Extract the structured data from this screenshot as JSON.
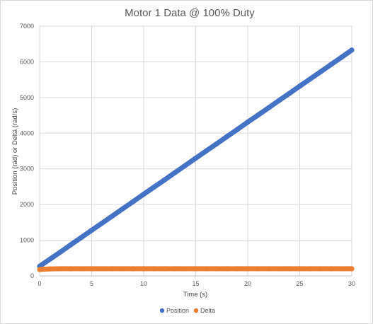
{
  "chart_data": {
    "type": "scatter",
    "title": "Motor 1 Data @ 100% Duty",
    "xlabel": "Time (s)",
    "ylabel": "Position (rad) or Delta (rad/s)",
    "xlim": [
      0,
      30
    ],
    "ylim": [
      0,
      7000
    ],
    "xticks": [
      "0",
      "5",
      "10",
      "15",
      "20",
      "25",
      "30"
    ],
    "yticks": [
      "0",
      "1000",
      "2000",
      "3000",
      "4000",
      "5000",
      "6000",
      "7000"
    ],
    "grid": true,
    "legend_position": "bottom",
    "series": [
      {
        "name": "Position",
        "color": "#4472c4",
        "x": [
          0,
          1,
          2,
          3,
          4,
          5,
          6,
          7,
          8,
          9,
          10,
          11,
          12,
          13,
          14,
          15,
          16,
          17,
          18,
          19,
          20,
          21,
          22,
          23,
          24,
          25,
          26,
          27,
          28,
          29,
          30
        ],
        "y": [
          270,
          470,
          670,
          875,
          1075,
          1280,
          1480,
          1680,
          1885,
          2085,
          2290,
          2490,
          2690,
          2895,
          3095,
          3300,
          3500,
          3700,
          3905,
          4105,
          4310,
          4510,
          4710,
          4915,
          5115,
          5320,
          5520,
          5720,
          5925,
          6125,
          6330
        ]
      },
      {
        "name": "Delta",
        "color": "#ed7d31",
        "x": [
          0,
          1,
          2,
          3,
          4,
          5,
          6,
          7,
          8,
          9,
          10,
          11,
          12,
          13,
          14,
          15,
          16,
          17,
          18,
          19,
          20,
          21,
          22,
          23,
          24,
          25,
          26,
          27,
          28,
          29,
          30
        ],
        "y": [
          180,
          195,
          200,
          200,
          200,
          200,
          200,
          200,
          200,
          200,
          200,
          200,
          200,
          200,
          200,
          200,
          200,
          200,
          200,
          200,
          200,
          200,
          200,
          200,
          200,
          200,
          200,
          200,
          200,
          200,
          200
        ]
      }
    ]
  }
}
